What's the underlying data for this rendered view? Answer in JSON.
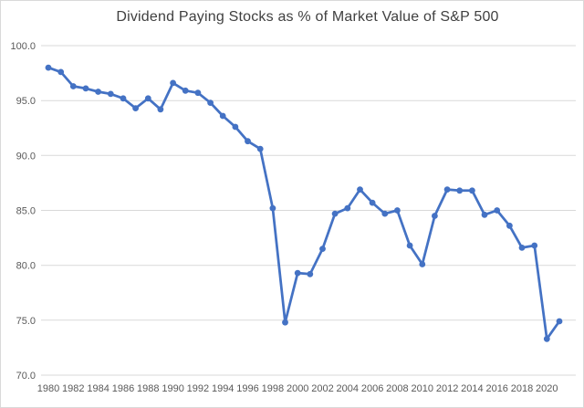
{
  "chart_data": {
    "type": "line",
    "title": "Dividend Paying Stocks as % of Market Value of S&P 500",
    "xlabel": "",
    "ylabel": "",
    "x": [
      1980,
      1981,
      1982,
      1983,
      1984,
      1985,
      1986,
      1987,
      1988,
      1989,
      1990,
      1991,
      1992,
      1993,
      1994,
      1995,
      1996,
      1997,
      1998,
      1999,
      2000,
      2001,
      2002,
      2003,
      2004,
      2005,
      2006,
      2007,
      2008,
      2009,
      2010,
      2011,
      2012,
      2013,
      2014,
      2015,
      2016,
      2017,
      2018,
      2019,
      2020,
      2021
    ],
    "values": [
      98.0,
      97.6,
      96.3,
      96.1,
      95.8,
      95.6,
      95.2,
      94.3,
      95.2,
      94.2,
      96.6,
      95.9,
      95.7,
      94.8,
      93.6,
      92.6,
      91.3,
      90.6,
      85.2,
      74.8,
      79.3,
      79.2,
      81.5,
      84.7,
      85.2,
      86.9,
      85.7,
      84.7,
      85.0,
      81.8,
      80.1,
      84.5,
      86.9,
      86.8,
      86.8,
      84.6,
      85.0,
      83.6,
      81.6,
      81.8,
      73.3,
      74.9
    ],
    "series_name": "Dividend paying stocks % of market value",
    "ylim": [
      70.0,
      100.0
    ],
    "ytick_step": 5,
    "ytick_labels": [
      "100.0",
      "95.0",
      "90.0",
      "85.0",
      "80.0",
      "75.0",
      "70.0"
    ],
    "xtick_labels": [
      "1980",
      "1982",
      "1984",
      "1986",
      "1988",
      "1990",
      "1992",
      "1994",
      "1996",
      "1998",
      "2000",
      "2002",
      "2004",
      "2006",
      "2008",
      "2010",
      "2012",
      "2014",
      "2016",
      "2018",
      "2020"
    ],
    "xtick_step": 2,
    "grid": "horizontal",
    "legend": "none",
    "marker": "circle",
    "colors": {
      "line": "#4472C4",
      "marker": "#4472C4",
      "grid": "#d9d9d9",
      "axis_text": "#595959",
      "title_text": "#404040",
      "background": "#ffffff",
      "border": "#d9d9d9"
    }
  }
}
